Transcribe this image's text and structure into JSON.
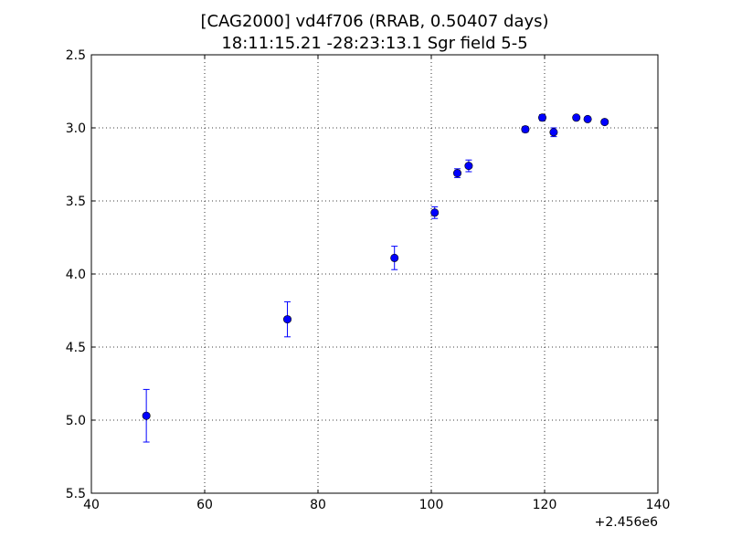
{
  "chart_data": {
    "type": "scatter",
    "title_line1": "[CAG2000] vd4f706  (RRAB, 0.50407 days)",
    "title_line2": "18:11:15.21 -28:23:13.1 Sgr field 5-5",
    "x_offset_label": "+2.456e6",
    "xlabel": "",
    "ylabel": "",
    "xlim": [
      40,
      140
    ],
    "ylim": [
      5.5,
      2.5
    ],
    "y_inverted": true,
    "grid": true,
    "x_ticks": [
      "40",
      "60",
      "80",
      "100",
      "120",
      "140"
    ],
    "y_ticks": [
      "2.5",
      "3.0",
      "3.5",
      "4.0",
      "4.5",
      "5.0",
      "5.5"
    ],
    "x_tick_values": [
      40,
      60,
      80,
      100,
      120,
      140
    ],
    "y_tick_values": [
      2.5,
      3.0,
      3.5,
      4.0,
      4.5,
      5.0,
      5.5
    ],
    "marker_color": "#0000ff",
    "points": [
      {
        "x": 49.7,
        "y": 4.97,
        "err": 0.18
      },
      {
        "x": 74.6,
        "y": 4.31,
        "err": 0.12
      },
      {
        "x": 93.5,
        "y": 3.89,
        "err": 0.08
      },
      {
        "x": 100.6,
        "y": 3.58,
        "err": 0.04
      },
      {
        "x": 104.6,
        "y": 3.31,
        "err": 0.03
      },
      {
        "x": 106.6,
        "y": 3.26,
        "err": 0.04
      },
      {
        "x": 116.6,
        "y": 3.01,
        "err": 0.02
      },
      {
        "x": 119.6,
        "y": 2.93,
        "err": 0.02
      },
      {
        "x": 121.6,
        "y": 3.03,
        "err": 0.03
      },
      {
        "x": 125.6,
        "y": 2.93,
        "err": 0.01
      },
      {
        "x": 127.6,
        "y": 2.94,
        "err": 0.01
      },
      {
        "x": 130.6,
        "y": 2.96,
        "err": 0.01
      }
    ]
  }
}
